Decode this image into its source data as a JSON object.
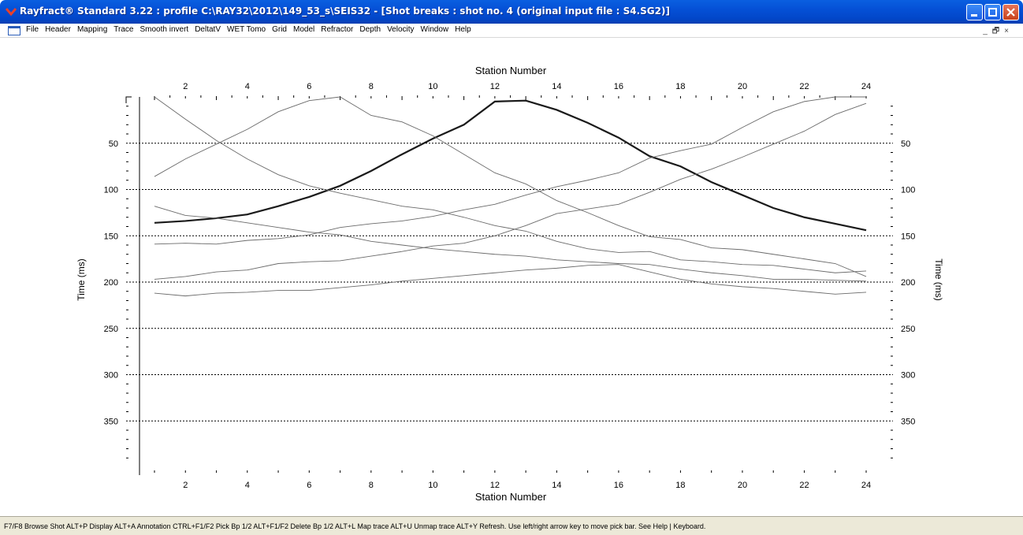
{
  "window": {
    "title": "Rayfract® Standard 3.22 : profile C:\\RAY32\\2012\\149_53_s\\SEIS32 - [Shot breaks : shot no. 4 (original input file : S4.SG2)]",
    "icon": "rayfract-logo-icon"
  },
  "menu": {
    "items": [
      "File",
      "Header",
      "Mapping",
      "Trace",
      "Smooth invert",
      "DeltatV",
      "WET Tomo",
      "Grid",
      "Model",
      "Refractor",
      "Depth",
      "Velocity",
      "Window",
      "Help"
    ],
    "mdi_controls": [
      "_",
      "🗗",
      "×"
    ]
  },
  "status": {
    "text": "F7/F8 Browse Shot  ALT+P Display  ALT+A Annotation  CTRL+F1/F2 Pick Bp 1/2  ALT+F1/F2 Delete Bp 1/2  ALT+L Map trace  ALT+U Unmap trace  ALT+Y Refresh.  Use left/right arrow key to move pick bar.  See Help | Keyboard."
  },
  "chart_data": {
    "type": "line",
    "title": "",
    "xlabel": "Station Number",
    "ylabel": "Time (ms)",
    "xlim": [
      0.5,
      25.2
    ],
    "ylim": [
      0,
      400
    ],
    "y_inverted": true,
    "x_ticks": [
      2,
      4,
      6,
      8,
      10,
      12,
      14,
      16,
      18,
      20,
      22,
      24
    ],
    "y_ticks": [
      50,
      100,
      150,
      200,
      250,
      300,
      350
    ],
    "grid": "horizontal dotted",
    "x": [
      1,
      2,
      3,
      4,
      5,
      6,
      7,
      8,
      9,
      10,
      11,
      12,
      13,
      14,
      15,
      16,
      17,
      18,
      19,
      20,
      21,
      22,
      23,
      24
    ],
    "series": [
      {
        "highlight": true,
        "values": [
          136,
          134,
          131,
          127,
          118,
          108,
          96,
          80,
          62,
          45,
          30,
          5,
          4,
          14,
          28,
          44,
          64,
          75,
          92,
          106,
          120,
          130,
          137,
          144
        ]
      },
      {
        "highlight": false,
        "values": [
          0,
          24,
          47,
          67,
          84,
          96,
          104,
          111,
          118,
          122,
          130,
          139,
          145,
          156,
          164,
          168,
          167,
          176,
          178,
          181,
          182,
          186,
          190,
          188
        ]
      },
      {
        "highlight": false,
        "values": [
          86,
          67,
          51,
          35,
          16,
          4,
          0,
          20,
          27,
          42,
          62,
          82,
          94,
          112,
          125,
          139,
          151,
          154,
          163,
          165,
          170,
          175,
          180,
          194
        ]
      },
      {
        "highlight": false,
        "values": [
          118,
          128,
          131,
          136,
          141,
          146,
          149,
          156,
          160,
          164,
          167,
          170,
          172,
          176,
          178,
          180,
          181,
          186,
          190,
          193,
          197,
          197,
          198,
          199
        ]
      },
      {
        "highlight": false,
        "values": [
          159,
          158,
          159,
          155,
          153,
          149,
          141,
          137,
          134,
          129,
          122,
          116,
          106,
          97,
          90,
          82,
          66,
          58,
          51,
          33,
          16,
          5,
          0,
          0
        ]
      },
      {
        "highlight": false,
        "values": [
          197,
          194,
          189,
          187,
          180,
          178,
          177,
          172,
          167,
          161,
          158,
          150,
          139,
          126,
          121,
          116,
          103,
          89,
          78,
          65,
          51,
          37,
          19,
          7
        ]
      },
      {
        "highlight": false,
        "values": [
          212,
          215,
          212,
          211,
          209,
          209,
          206,
          203,
          199,
          196,
          193,
          190,
          187,
          185,
          182,
          181,
          189,
          197,
          202,
          205,
          207,
          210,
          213,
          211
        ]
      }
    ]
  }
}
